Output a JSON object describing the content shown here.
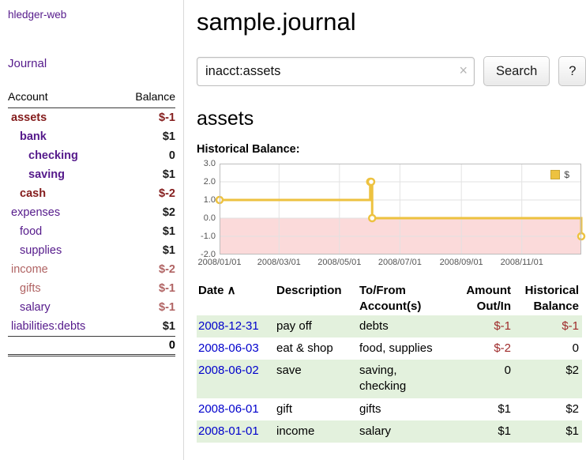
{
  "colors": {
    "link_purple": "#551a8b",
    "dark_red": "#841c1c",
    "light_red": "#b06363",
    "negative_red": "#9e2a2a",
    "date_blue": "#0000cc",
    "row_green": "#e3f1dd",
    "chart_line": "#edc240",
    "negative_region": "#fbdada"
  },
  "sidebar": {
    "app_title": "hledger-web",
    "journal_label": "Journal",
    "accounts_header": {
      "account": "Account",
      "balance": "Balance"
    },
    "accounts": [
      {
        "name": "assets",
        "balance": "$-1",
        "indent": 0,
        "bold": true,
        "name_color": "dark_red",
        "balance_color": "dark_red"
      },
      {
        "name": "bank",
        "balance": "$1",
        "indent": 1,
        "bold": true,
        "name_color": "link_purple",
        "balance_color": "black"
      },
      {
        "name": "checking",
        "balance": "0",
        "indent": 2,
        "bold": true,
        "name_color": "link_purple",
        "balance_color": "black"
      },
      {
        "name": "saving",
        "balance": "$1",
        "indent": 2,
        "bold": true,
        "name_color": "link_purple",
        "balance_color": "black"
      },
      {
        "name": "cash",
        "balance": "$-2",
        "indent": 1,
        "bold": true,
        "name_color": "dark_red",
        "balance_color": "dark_red"
      },
      {
        "name": "expenses",
        "balance": "$2",
        "indent": 0,
        "bold": false,
        "name_color": "link_purple",
        "balance_color": "black"
      },
      {
        "name": "food",
        "balance": "$1",
        "indent": 1,
        "bold": false,
        "name_color": "link_purple",
        "balance_color": "black"
      },
      {
        "name": "supplies",
        "balance": "$1",
        "indent": 1,
        "bold": false,
        "name_color": "link_purple",
        "balance_color": "black"
      },
      {
        "name": "income",
        "balance": "$-2",
        "indent": 0,
        "bold": false,
        "name_color": "light_red",
        "balance_color": "light_red"
      },
      {
        "name": "gifts",
        "balance": "$-1",
        "indent": 1,
        "bold": false,
        "name_color": "light_red",
        "balance_color": "light_red"
      },
      {
        "name": "salary",
        "balance": "$-1",
        "indent": 1,
        "bold": false,
        "name_color": "link_purple",
        "balance_color": "light_red"
      },
      {
        "name": "liabilities:debts",
        "balance": "$1",
        "indent": 0,
        "bold": false,
        "name_color": "link_purple",
        "balance_color": "black"
      }
    ],
    "total": "0"
  },
  "main": {
    "title": "sample.journal",
    "account_heading": "assets"
  },
  "search": {
    "value": "inacct:assets",
    "clear_icon": "×",
    "button_label": "Search",
    "help_label": "?"
  },
  "chart_data": {
    "type": "line",
    "title": "Historical Balance:",
    "step": true,
    "legend": [
      {
        "label": "$",
        "color": "#edc240"
      }
    ],
    "legend_position": "top-right",
    "grid": true,
    "ylim": [
      -2,
      3
    ],
    "x_range_days": 365,
    "y_ticks": [
      {
        "label": "3.0",
        "value": 3
      },
      {
        "label": "2.0",
        "value": 2
      },
      {
        "label": "1.0",
        "value": 1
      },
      {
        "label": "0.0",
        "value": 0
      },
      {
        "label": "-1.0",
        "value": -1
      },
      {
        "label": "-2.0",
        "value": -2
      }
    ],
    "x_ticks": [
      {
        "label": "2008/01/01",
        "day": 0
      },
      {
        "label": "2008/03/01",
        "day": 60
      },
      {
        "label": "2008/05/01",
        "day": 121
      },
      {
        "label": "2008/07/01",
        "day": 182
      },
      {
        "label": "2008/09/01",
        "day": 244
      },
      {
        "label": "2008/11/01",
        "day": 305
      }
    ],
    "points": [
      {
        "date": "2008-01-01",
        "day": 0,
        "value": 1
      },
      {
        "date": "2008-06-01",
        "day": 152,
        "value": 2
      },
      {
        "date": "2008-06-02",
        "day": 153,
        "value": 2
      },
      {
        "date": "2008-06-03",
        "day": 154,
        "value": 0
      },
      {
        "date": "2008-12-31",
        "day": 365,
        "value": -1
      }
    ],
    "negative_region": {
      "from": 0,
      "to": -2
    }
  },
  "register": {
    "headers": [
      {
        "key": "date",
        "lines": [
          "Date"
        ],
        "align": "left",
        "sortable": true,
        "sort_indicator": "∧"
      },
      {
        "key": "description",
        "lines": [
          "Description"
        ],
        "align": "left",
        "sortable": false
      },
      {
        "key": "accounts",
        "lines": [
          "To/From",
          "Account(s)"
        ],
        "align": "left",
        "sortable": false
      },
      {
        "key": "amount",
        "lines": [
          "Amount",
          "Out/In"
        ],
        "align": "right",
        "sortable": false
      },
      {
        "key": "balance",
        "lines": [
          "Historical",
          "Balance"
        ],
        "align": "right",
        "sortable": false
      }
    ],
    "rows": [
      {
        "date": "2008-12-31",
        "description": "pay off",
        "accounts": [
          "debts"
        ],
        "amount": "$-1",
        "amount_negative": true,
        "balance": "$-1",
        "balance_negative": true,
        "shaded": true
      },
      {
        "date": "2008-06-03",
        "description": "eat & shop",
        "accounts": [
          "food, supplies"
        ],
        "amount": "$-2",
        "amount_negative": true,
        "balance": "0",
        "balance_negative": false,
        "shaded": false
      },
      {
        "date": "2008-06-02",
        "description": "save",
        "accounts": [
          "saving,",
          "checking"
        ],
        "amount": "0",
        "amount_negative": false,
        "balance": "$2",
        "balance_negative": false,
        "shaded": true
      },
      {
        "date": "2008-06-01",
        "description": "gift",
        "accounts": [
          "gifts"
        ],
        "amount": "$1",
        "amount_negative": false,
        "balance": "$2",
        "balance_negative": false,
        "shaded": false
      },
      {
        "date": "2008-01-01",
        "description": "income",
        "accounts": [
          "salary"
        ],
        "amount": "$1",
        "amount_negative": false,
        "balance": "$1",
        "balance_negative": false,
        "shaded": true
      }
    ]
  }
}
